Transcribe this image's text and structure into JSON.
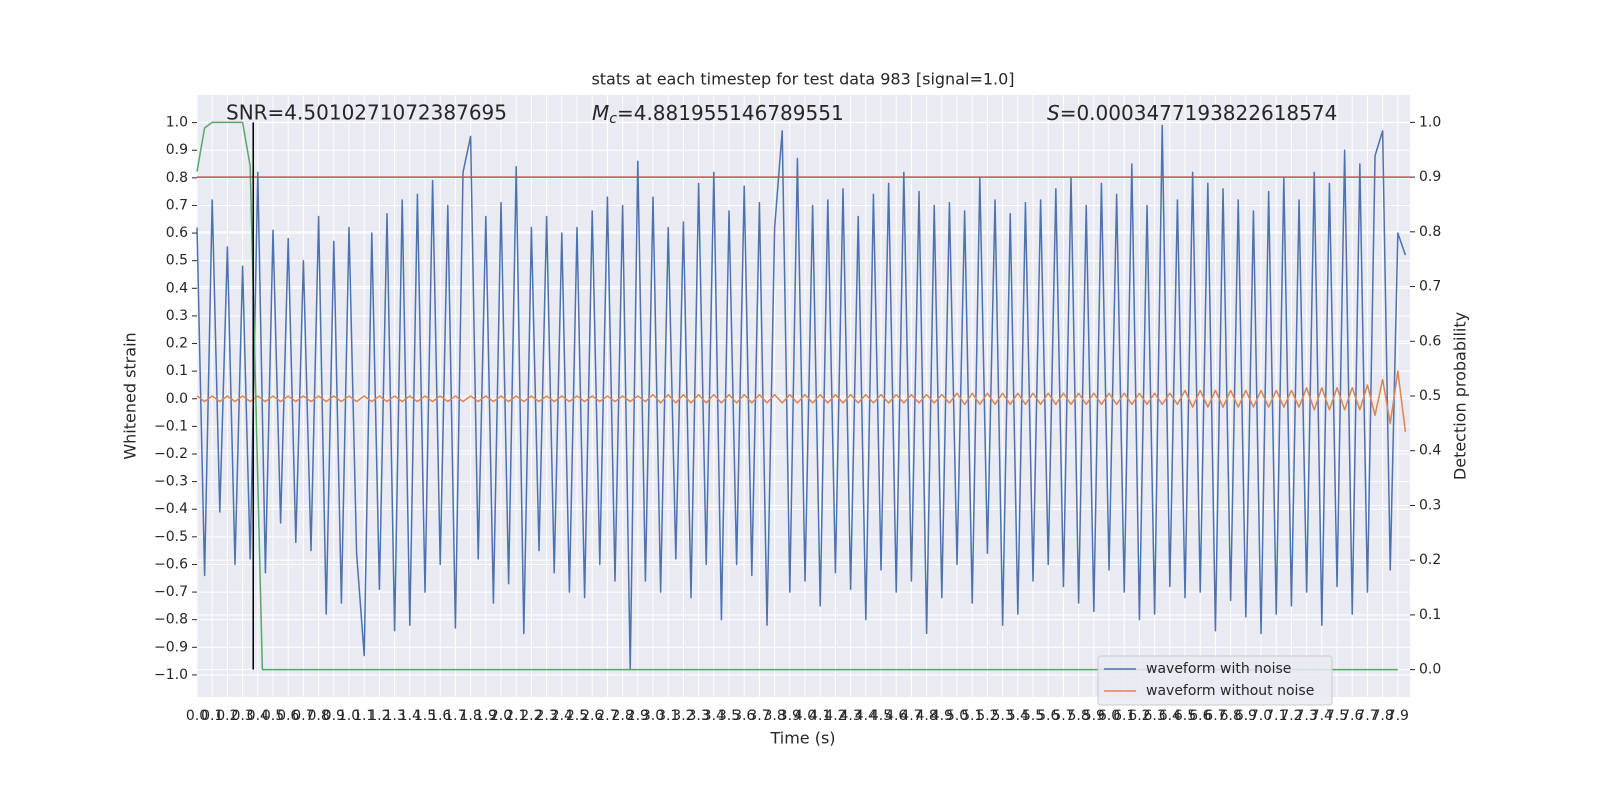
{
  "chart_data": {
    "type": "line",
    "title": "stats at each timestep for test data 983 [signal=1.0]",
    "xlabel": "Time (s)",
    "ylabel": "Whitened strain",
    "y2label": "Detection probability",
    "grid": true,
    "background": "#eaeaf2",
    "legend": "lower right",
    "xlim": [
      0,
      7.98
    ],
    "ylim": [
      -1.08,
      1.1
    ],
    "y2lim": [
      -0.05,
      1.05
    ],
    "xticks": [
      {
        "value": 0,
        "label": "0.0"
      },
      0.1,
      0.2,
      0.3,
      0.4,
      0.5,
      0.6,
      0.7,
      0.8,
      0.9,
      {
        "value": 1,
        "label": "1.0"
      },
      1.1,
      1.2,
      1.3,
      1.4,
      1.5,
      1.6,
      1.7,
      1.8,
      1.9,
      {
        "value": 2,
        "label": "2.0"
      },
      2.1,
      2.2,
      2.3,
      2.4,
      2.5,
      2.6,
      2.7,
      2.8,
      2.9,
      {
        "value": 3,
        "label": "3.0"
      },
      3.1,
      3.2,
      3.3,
      3.4,
      3.5,
      3.6,
      3.7,
      3.8,
      3.9,
      {
        "value": 4,
        "label": "4.0"
      },
      4.1,
      4.2,
      4.3,
      4.4,
      4.5,
      4.6,
      4.7,
      4.8,
      4.9,
      {
        "value": 5,
        "label": "5.0"
      },
      5.1,
      5.2,
      5.3,
      5.4,
      5.5,
      5.6,
      5.7,
      5.8,
      5.9,
      {
        "value": 6,
        "label": "6.0"
      },
      6.1,
      6.2,
      6.3,
      6.4,
      6.5,
      6.6,
      6.7,
      6.8,
      6.9,
      {
        "value": 7,
        "label": "7.0"
      },
      7.1,
      7.2,
      7.3,
      7.4,
      7.5,
      7.6,
      7.7,
      7.8,
      7.9
    ],
    "yticks": [
      {
        "value": -1,
        "label": "−1.0"
      },
      {
        "value": -0.9,
        "label": "−0.9"
      },
      {
        "value": -0.8,
        "label": "−0.8"
      },
      {
        "value": -0.7,
        "label": "−0.7"
      },
      {
        "value": -0.6,
        "label": "−0.6"
      },
      {
        "value": -0.5,
        "label": "−0.5"
      },
      {
        "value": -0.4,
        "label": "−0.4"
      },
      {
        "value": -0.3,
        "label": "−0.3"
      },
      {
        "value": -0.2,
        "label": "−0.2"
      },
      {
        "value": -0.1,
        "label": "−0.1"
      },
      {
        "value": 0,
        "label": "0.0"
      },
      0.1,
      0.2,
      0.3,
      0.4,
      0.5,
      0.6,
      0.7,
      0.8,
      0.9,
      {
        "value": 1,
        "label": "1.0"
      }
    ],
    "y2ticks": [
      {
        "value": 0,
        "label": "0.0"
      },
      0.1,
      0.2,
      0.3,
      0.4,
      0.5,
      0.6,
      0.7,
      0.8,
      0.9,
      {
        "value": 1,
        "label": "1.0"
      }
    ],
    "x": [
      0,
      0.05,
      0.1,
      0.15,
      0.2,
      0.25,
      0.3,
      0.35,
      0.4,
      0.45,
      0.5,
      0.55,
      0.6,
      0.65,
      0.7,
      0.75,
      0.8,
      0.85,
      0.9,
      0.95,
      1,
      1.05,
      1.1,
      1.15,
      1.2,
      1.25,
      1.3,
      1.35,
      1.4,
      1.45,
      1.5,
      1.55,
      1.6,
      1.65,
      1.7,
      1.75,
      1.8,
      1.85,
      1.9,
      1.95,
      2,
      2.05,
      2.1,
      2.15,
      2.2,
      2.25,
      2.3,
      2.35,
      2.4,
      2.45,
      2.5,
      2.55,
      2.6,
      2.65,
      2.7,
      2.75,
      2.8,
      2.85,
      2.9,
      2.95,
      3,
      3.05,
      3.1,
      3.15,
      3.2,
      3.25,
      3.3,
      3.35,
      3.4,
      3.45,
      3.5,
      3.55,
      3.6,
      3.65,
      3.7,
      3.75,
      3.8,
      3.85,
      3.9,
      3.95,
      4,
      4.05,
      4.1,
      4.15,
      4.2,
      4.25,
      4.3,
      4.35,
      4.4,
      4.45,
      4.5,
      4.55,
      4.6,
      4.65,
      4.7,
      4.75,
      4.8,
      4.85,
      4.9,
      4.95,
      5,
      5.05,
      5.1,
      5.15,
      5.2,
      5.25,
      5.3,
      5.35,
      5.4,
      5.45,
      5.5,
      5.55,
      5.6,
      5.65,
      5.7,
      5.75,
      5.8,
      5.85,
      5.9,
      5.95,
      6,
      6.05,
      6.1,
      6.15,
      6.2,
      6.25,
      6.3,
      6.35,
      6.4,
      6.45,
      6.5,
      6.55,
      6.6,
      6.65,
      6.7,
      6.75,
      6.8,
      6.85,
      6.9,
      6.95,
      7,
      7.05,
      7.1,
      7.15,
      7.2,
      7.25,
      7.3,
      7.35,
      7.4,
      7.45,
      7.5,
      7.55,
      7.6,
      7.65,
      7.7,
      7.75,
      7.8,
      7.85,
      7.9,
      7.95
    ],
    "series": [
      {
        "name": "waveform with noise",
        "color": "#4c72b0",
        "axis": "y",
        "values": [
          0.62,
          -0.64,
          0.72,
          -0.41,
          0.55,
          -0.6,
          0.48,
          -0.58,
          0.82,
          -0.63,
          0.61,
          -0.45,
          0.58,
          -0.52,
          0.5,
          -0.55,
          0.66,
          -0.78,
          0.57,
          -0.74,
          0.62,
          -0.56,
          -0.93,
          0.6,
          -0.69,
          0.67,
          -0.84,
          0.72,
          -0.82,
          0.74,
          -0.7,
          0.79,
          -0.6,
          0.7,
          -0.83,
          0.82,
          0.95,
          -0.58,
          0.66,
          -0.74,
          0.71,
          -0.67,
          0.84,
          -0.85,
          0.62,
          -0.55,
          0.66,
          -0.63,
          0.6,
          -0.7,
          0.62,
          -0.72,
          0.68,
          -0.6,
          0.73,
          -0.66,
          0.7,
          -0.98,
          0.86,
          -0.66,
          0.73,
          -0.7,
          0.62,
          -0.58,
          0.64,
          -0.72,
          0.78,
          -0.6,
          0.82,
          -0.8,
          0.68,
          -0.6,
          0.77,
          -0.64,
          0.71,
          -0.82,
          0.62,
          0.97,
          -0.7,
          0.87,
          -0.66,
          0.7,
          -0.75,
          0.72,
          -0.63,
          0.76,
          -0.69,
          0.66,
          -0.8,
          0.74,
          -0.62,
          0.78,
          -0.7,
          0.82,
          -0.66,
          0.75,
          -0.85,
          0.7,
          -0.72,
          0.71,
          -0.6,
          0.68,
          -0.74,
          0.8,
          -0.56,
          0.72,
          -0.82,
          0.67,
          -0.78,
          0.71,
          -0.66,
          0.72,
          -0.6,
          0.76,
          -0.68,
          0.8,
          -0.74,
          0.7,
          -0.77,
          0.78,
          -0.62,
          0.74,
          -0.7,
          0.85,
          -0.8,
          0.7,
          -0.78,
          0.99,
          -0.68,
          0.72,
          -0.72,
          0.82,
          -0.7,
          0.78,
          -0.84,
          0.76,
          -0.73,
          0.72,
          -0.79,
          0.68,
          -0.85,
          0.75,
          -0.78,
          0.8,
          -0.75,
          0.72,
          -0.7,
          0.82,
          -0.82,
          0.78,
          -0.68,
          0.9,
          -0.78,
          0.85,
          -0.7,
          0.88,
          0.97,
          -0.62,
          0.6,
          0.52
        ]
      },
      {
        "name": "waveform without noise",
        "color": "#dd8452",
        "axis": "y",
        "values": [
          0.01,
          -0.01,
          0.01,
          -0.01,
          0.01,
          -0.01,
          0.01,
          -0.01,
          0.01,
          -0.01,
          0.01,
          -0.01,
          0.01,
          -0.01,
          0.01,
          -0.01,
          0.01,
          -0.01,
          0.01,
          -0.01,
          0.01,
          -0.01,
          0.01,
          -0.01,
          0.01,
          -0.01,
          0.01,
          -0.01,
          0.01,
          -0.01,
          0.01,
          -0.01,
          0.01,
          -0.01,
          0.01,
          -0.01,
          0.01,
          -0.01,
          0.01,
          -0.01,
          0.01,
          -0.01,
          0.01,
          -0.01,
          0.01,
          -0.01,
          0.01,
          -0.01,
          0.01,
          -0.01,
          0.01,
          -0.01,
          0.01,
          -0.01,
          0.01,
          -0.01,
          0.01,
          -0.01,
          0.01,
          -0.01,
          0.015,
          -0.015,
          0.015,
          -0.015,
          0.015,
          -0.015,
          0.015,
          -0.015,
          0.015,
          -0.015,
          0.015,
          -0.015,
          0.015,
          -0.015,
          0.015,
          -0.015,
          0.015,
          -0.015,
          0.015,
          -0.015,
          0.015,
          -0.015,
          0.015,
          -0.015,
          0.015,
          -0.015,
          0.015,
          -0.015,
          0.015,
          -0.015,
          0.015,
          -0.015,
          0.015,
          -0.015,
          0.015,
          -0.015,
          0.015,
          -0.015,
          0.015,
          -0.015,
          0.02,
          -0.02,
          0.02,
          -0.02,
          0.02,
          -0.02,
          0.02,
          -0.02,
          0.02,
          -0.02,
          0.02,
          -0.02,
          0.02,
          -0.02,
          0.02,
          -0.02,
          0.02,
          -0.02,
          0.02,
          -0.02,
          0.02,
          -0.02,
          0.02,
          -0.02,
          0.02,
          -0.02,
          0.02,
          -0.02,
          0.02,
          -0.02,
          0.03,
          -0.03,
          0.03,
          -0.03,
          0.03,
          -0.03,
          0.03,
          -0.03,
          0.03,
          -0.03,
          0.03,
          -0.03,
          0.03,
          -0.03,
          0.03,
          -0.03,
          0.04,
          -0.04,
          0.04,
          -0.04,
          0.04,
          -0.04,
          0.04,
          -0.04,
          0.05,
          -0.06,
          0.07,
          -0.09,
          0.1,
          -0.12
        ]
      },
      {
        "name": null,
        "color": "#55a868",
        "axis": "y2",
        "x": [
          0,
          0.05,
          0.1,
          0.2,
          0.3,
          0.35,
          0.43,
          7.9
        ],
        "values": [
          0.91,
          0.99,
          1.0,
          1.0,
          1.0,
          0.92,
          0.0,
          0.0
        ]
      }
    ],
    "hlines": [
      {
        "y": 0.9,
        "axis": "y2",
        "color": "#c44e52"
      }
    ],
    "vlines": [
      {
        "x": 0.37,
        "ymin": 0,
        "ymax": 1,
        "axis": "y2",
        "color": "#000000"
      }
    ],
    "annotations": [
      {
        "text": "SNR=4.5010271072387695"
      },
      {
        "symbol": "M",
        "subscript": "c",
        "text": "=4.881955146789551"
      },
      {
        "symbol": "S",
        "text": "=0.0003477193822618574"
      }
    ]
  }
}
